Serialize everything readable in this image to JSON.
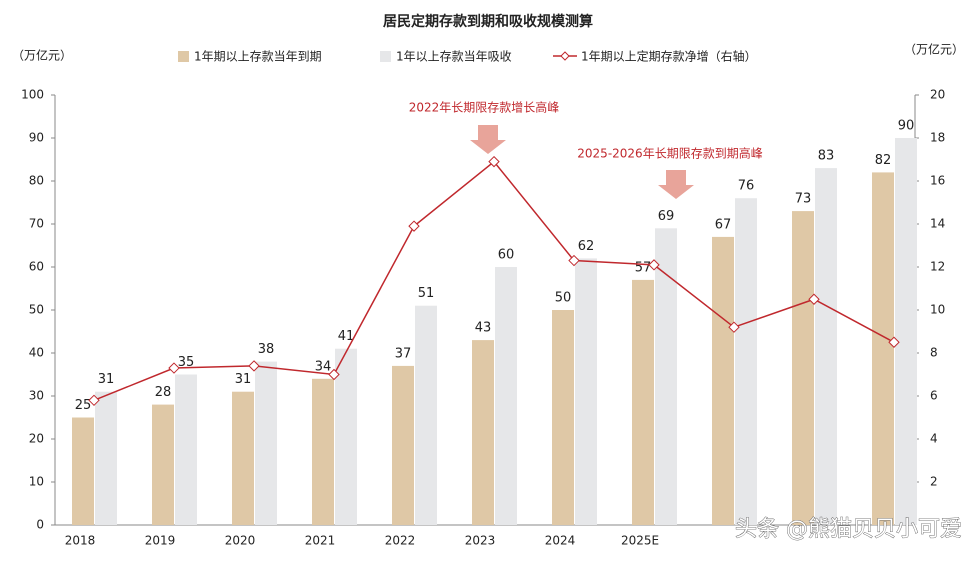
{
  "chart_data": {
    "type": "bar_line",
    "title": "居民定期存款到期和吸收规模测算",
    "y_label": "（万亿元）",
    "y2_label": "（万亿元）",
    "categories": [
      "2018",
      "2019",
      "2020",
      "2021",
      "2022",
      "2023",
      "2024",
      "2025E",
      null,
      null,
      null
    ],
    "series": [
      {
        "name": "1年期以上存款当年到期",
        "color": "#dfc8a6",
        "values": [
          25,
          28,
          31,
          34,
          37,
          43,
          50,
          57,
          67,
          73,
          82
        ]
      },
      {
        "name": "1年以上存款当年吸收",
        "color": "#e6e7e9",
        "values": [
          31,
          35,
          38,
          41,
          51,
          60,
          62,
          69,
          76,
          83,
          90
        ]
      },
      {
        "name": "1年期以上定期存款净增（右轴）",
        "color": "#c0282d",
        "axis": "y2",
        "values": [
          5.8,
          7.3,
          7.4,
          7.0,
          13.9,
          16.9,
          12.3,
          12.1,
          9.2,
          10.5,
          8.5
        ]
      }
    ],
    "ylim": [
      0,
      100
    ],
    "yticks": [
      0,
      10,
      20,
      30,
      40,
      50,
      60,
      70,
      80,
      90,
      100
    ],
    "y2lim": [
      0,
      20
    ],
    "y2ticks": [
      2,
      4,
      6,
      8,
      10,
      12,
      14,
      16,
      18,
      20
    ],
    "annotations": [
      "2022年长期限存款增长高峰",
      "2025-2026年长期限存款到期高峰"
    ],
    "watermark": "头条 @熊猫贝贝小可爱"
  }
}
